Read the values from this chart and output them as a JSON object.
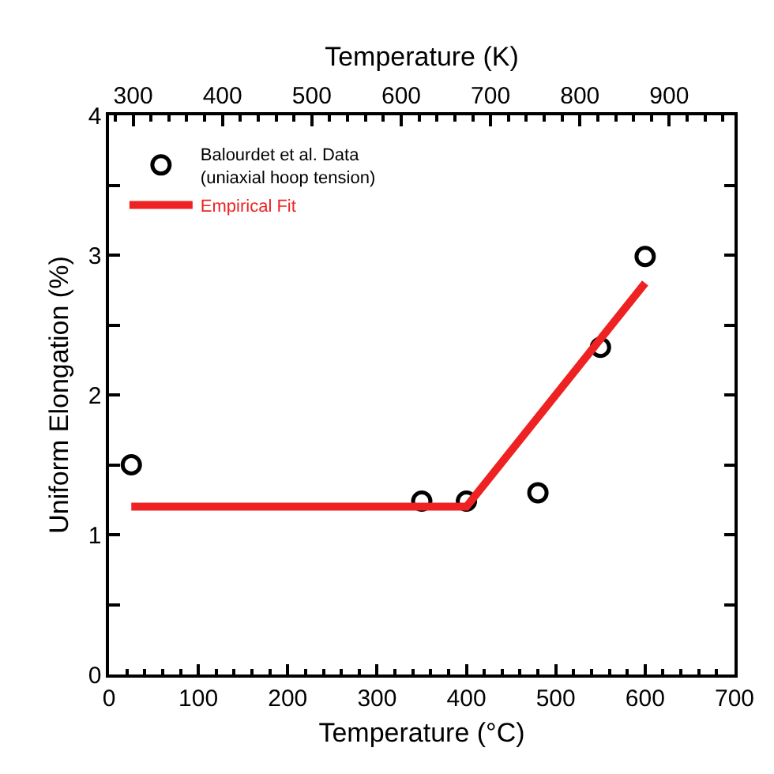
{
  "chart_data": {
    "type": "scatter",
    "xlabel": "Temperature (°C)",
    "ylabel": "Uniform Elongation (%)",
    "x2label": "Temperature (K)",
    "xlim": [
      0,
      700
    ],
    "ylim": [
      0,
      4
    ],
    "x2lim": [
      273,
      973
    ],
    "xticks": [
      0,
      {
        "value": 20,
        "label": null
      },
      {
        "value": 40,
        "label": null
      },
      {
        "value": 60,
        "label": null
      },
      {
        "value": 80,
        "label": null
      },
      100,
      {
        "value": 120,
        "label": null
      },
      {
        "value": 140,
        "label": null
      },
      {
        "value": 160,
        "label": null
      },
      {
        "value": 180,
        "label": null
      },
      200,
      {
        "value": 220,
        "label": null
      },
      {
        "value": 240,
        "label": null
      },
      {
        "value": 260,
        "label": null
      },
      {
        "value": 280,
        "label": null
      },
      300,
      {
        "value": 320,
        "label": null
      },
      {
        "value": 340,
        "label": null
      },
      {
        "value": 360,
        "label": null
      },
      {
        "value": 380,
        "label": null
      },
      400,
      {
        "value": 420,
        "label": null
      },
      {
        "value": 440,
        "label": null
      },
      {
        "value": 460,
        "label": null
      },
      {
        "value": 480,
        "label": null
      },
      500,
      {
        "value": 520,
        "label": null
      },
      {
        "value": 540,
        "label": null
      },
      {
        "value": 560,
        "label": null
      },
      {
        "value": 580,
        "label": null
      },
      600,
      {
        "value": 620,
        "label": null
      },
      {
        "value": 640,
        "label": null
      },
      {
        "value": 660,
        "label": null
      },
      {
        "value": 680,
        "label": null
      },
      700
    ],
    "x2ticks": [
      {
        "value": 280,
        "label": null
      },
      300,
      {
        "value": 320,
        "label": null
      },
      {
        "value": 340,
        "label": null
      },
      {
        "value": 360,
        "label": null
      },
      {
        "value": 380,
        "label": null
      },
      400,
      {
        "value": 420,
        "label": null
      },
      {
        "value": 440,
        "label": null
      },
      {
        "value": 460,
        "label": null
      },
      {
        "value": 480,
        "label": null
      },
      500,
      {
        "value": 520,
        "label": null
      },
      {
        "value": 540,
        "label": null
      },
      {
        "value": 560,
        "label": null
      },
      {
        "value": 580,
        "label": null
      },
      600,
      {
        "value": 620,
        "label": null
      },
      {
        "value": 640,
        "label": null
      },
      {
        "value": 660,
        "label": null
      },
      {
        "value": 680,
        "label": null
      },
      700,
      {
        "value": 720,
        "label": null
      },
      {
        "value": 740,
        "label": null
      },
      {
        "value": 760,
        "label": null
      },
      {
        "value": 780,
        "label": null
      },
      800,
      {
        "value": 820,
        "label": null
      },
      {
        "value": 840,
        "label": null
      },
      {
        "value": 860,
        "label": null
      },
      {
        "value": 880,
        "label": null
      },
      900,
      {
        "value": 920,
        "label": null
      },
      {
        "value": 940,
        "label": null
      },
      {
        "value": 960,
        "label": null
      }
    ],
    "yticks": [
      0,
      {
        "value": 0.5,
        "label": null
      },
      1,
      {
        "value": 1.5,
        "label": null
      },
      2,
      {
        "value": 2.5,
        "label": null
      },
      3,
      {
        "value": 3.5,
        "label": null
      },
      4
    ],
    "legend": "top left",
    "grid": false,
    "series": [
      {
        "name": "Balourdet et al. Data\n(uniaxial hoop tension)",
        "marker": "circle",
        "color": "#000000",
        "x": [
          25,
          350,
          400,
          480,
          550,
          600
        ],
        "values": [
          1.5,
          1.24,
          1.24,
          1.3,
          2.34,
          2.99
        ]
      },
      {
        "name": "Empirical Fit",
        "type": "line",
        "color": "#ee2222",
        "line_style": "solid",
        "x": [
          25,
          400,
          600
        ],
        "values": [
          1.2,
          1.2,
          2.8
        ]
      }
    ]
  }
}
